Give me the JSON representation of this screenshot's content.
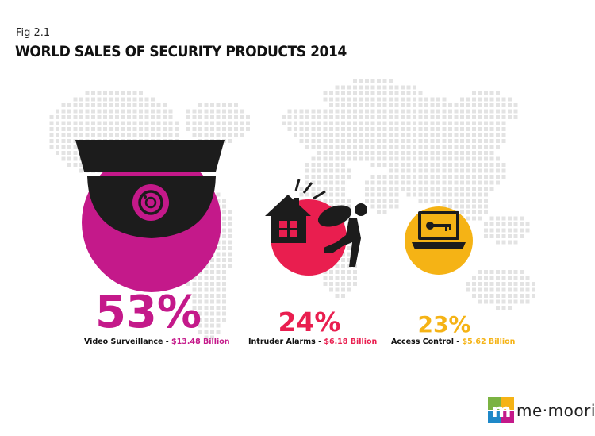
{
  "figure_label": "Fig 2.1",
  "chart_data": {
    "type": "pie",
    "title": "WORLD SALES OF SECURITY PRODUCTS 2014",
    "series": [
      {
        "name": "Video Surveillance",
        "percent": "53%",
        "value_text": "$13.48 Billion",
        "value": 13.48,
        "share": 53,
        "color": "#c4198a",
        "icon": "cctv-camera-icon"
      },
      {
        "name": "Intruder Alarms",
        "percent": "24%",
        "value_text": "$6.18 Billion",
        "value": 6.18,
        "share": 24,
        "color": "#e91e4f",
        "icon": "burglar-house-icon"
      },
      {
        "name": "Access Control",
        "percent": "23%",
        "value_text": "$5.62 Billion",
        "value": 5.62,
        "share": 23,
        "color": "#f5b315",
        "icon": "laptop-key-icon"
      }
    ],
    "separator": " - "
  },
  "logo": {
    "text": "me·moori",
    "letter": "m",
    "icon": "memoori-logo-icon"
  },
  "colors": {
    "map_dot": "#e3e3e3",
    "dark": "#1c1c1c"
  }
}
